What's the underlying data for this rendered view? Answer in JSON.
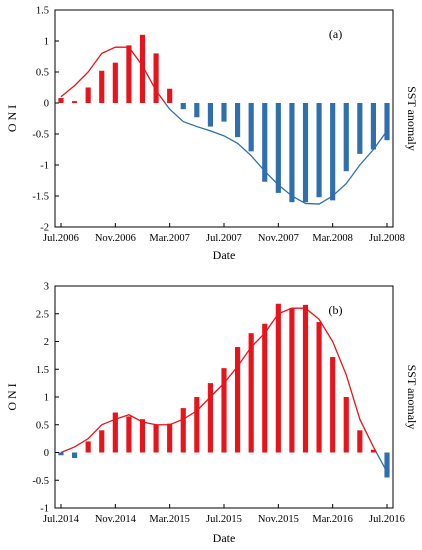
{
  "colors": {
    "positive": "#e8141b",
    "negative": "#2f6fae",
    "frame": "#000000"
  },
  "chart_data": [
    {
      "type": "bar",
      "panel_label": "(a)",
      "ylabel": "O N I",
      "right_label": "SST anomaly",
      "xlabel": "Date",
      "ylim": [
        -2,
        1.5
      ],
      "yticks": [
        -2,
        -1.5,
        -1,
        -0.5,
        0,
        0.5,
        1,
        1.5
      ],
      "ytick_labels": [
        "-2",
        "-1.5",
        "-1",
        "-0.5",
        "0",
        "0.5",
        "1",
        "1.5"
      ],
      "xtick_labels": [
        "Jul.2006",
        "Nov.2006",
        "Mar.2007",
        "Jul.2007",
        "Nov.2007",
        "Mar.2008",
        "Jul.2008"
      ],
      "xtick_index": [
        0,
        4,
        8,
        12,
        16,
        20,
        24
      ],
      "series": [
        {
          "type": "bar",
          "values": [
            0.08,
            0.03,
            0.25,
            0.52,
            0.65,
            0.93,
            1.1,
            0.8,
            0.23,
            -0.1,
            -0.23,
            -0.38,
            -0.3,
            -0.55,
            -0.78,
            -1.27,
            -1.45,
            -1.6,
            -1.6,
            -1.52,
            -1.57,
            -1.1,
            -0.82,
            -0.75,
            -0.6
          ]
        },
        {
          "type": "line",
          "values": [
            0.1,
            0.28,
            0.5,
            0.8,
            0.9,
            0.9,
            0.6,
            0.2,
            -0.1,
            -0.3,
            -0.38,
            -0.45,
            -0.53,
            -0.65,
            -0.85,
            -1.1,
            -1.32,
            -1.5,
            -1.62,
            -1.63,
            -1.5,
            -1.3,
            -1.0,
            -0.75,
            -0.45
          ]
        }
      ]
    },
    {
      "type": "bar",
      "panel_label": "(b)",
      "ylabel": "O N I",
      "right_label": "SST anomaly",
      "xlabel": "Date",
      "ylim": [
        -1,
        3
      ],
      "yticks": [
        -1,
        -0.5,
        0,
        0.5,
        1,
        1.5,
        2,
        2.5,
        3
      ],
      "ytick_labels": [
        "-1",
        "-0.5",
        "0",
        "0.5",
        "1",
        "1.5",
        "2",
        "2.5",
        "3"
      ],
      "xtick_labels": [
        "Jul.2014",
        "Nov.2014",
        "Mar.2015",
        "Jul.2015",
        "Nov.2015",
        "Mar.2016",
        "Jul.2016"
      ],
      "xtick_index": [
        0,
        4,
        8,
        12,
        16,
        20,
        24
      ],
      "series": [
        {
          "type": "bar",
          "values": [
            -0.05,
            -0.1,
            0.2,
            0.4,
            0.72,
            0.65,
            0.6,
            0.5,
            0.52,
            0.8,
            1.0,
            1.25,
            1.52,
            1.9,
            2.15,
            2.32,
            2.68,
            2.6,
            2.66,
            2.35,
            1.72,
            1.0,
            0.4,
            0.05,
            -0.45
          ]
        },
        {
          "type": "line",
          "values": [
            0.0,
            0.1,
            0.25,
            0.5,
            0.6,
            0.68,
            0.55,
            0.5,
            0.5,
            0.6,
            0.75,
            1.0,
            1.25,
            1.55,
            1.9,
            2.15,
            2.5,
            2.6,
            2.6,
            2.4,
            2.0,
            1.4,
            0.6,
            0.1,
            -0.35
          ]
        }
      ]
    }
  ]
}
